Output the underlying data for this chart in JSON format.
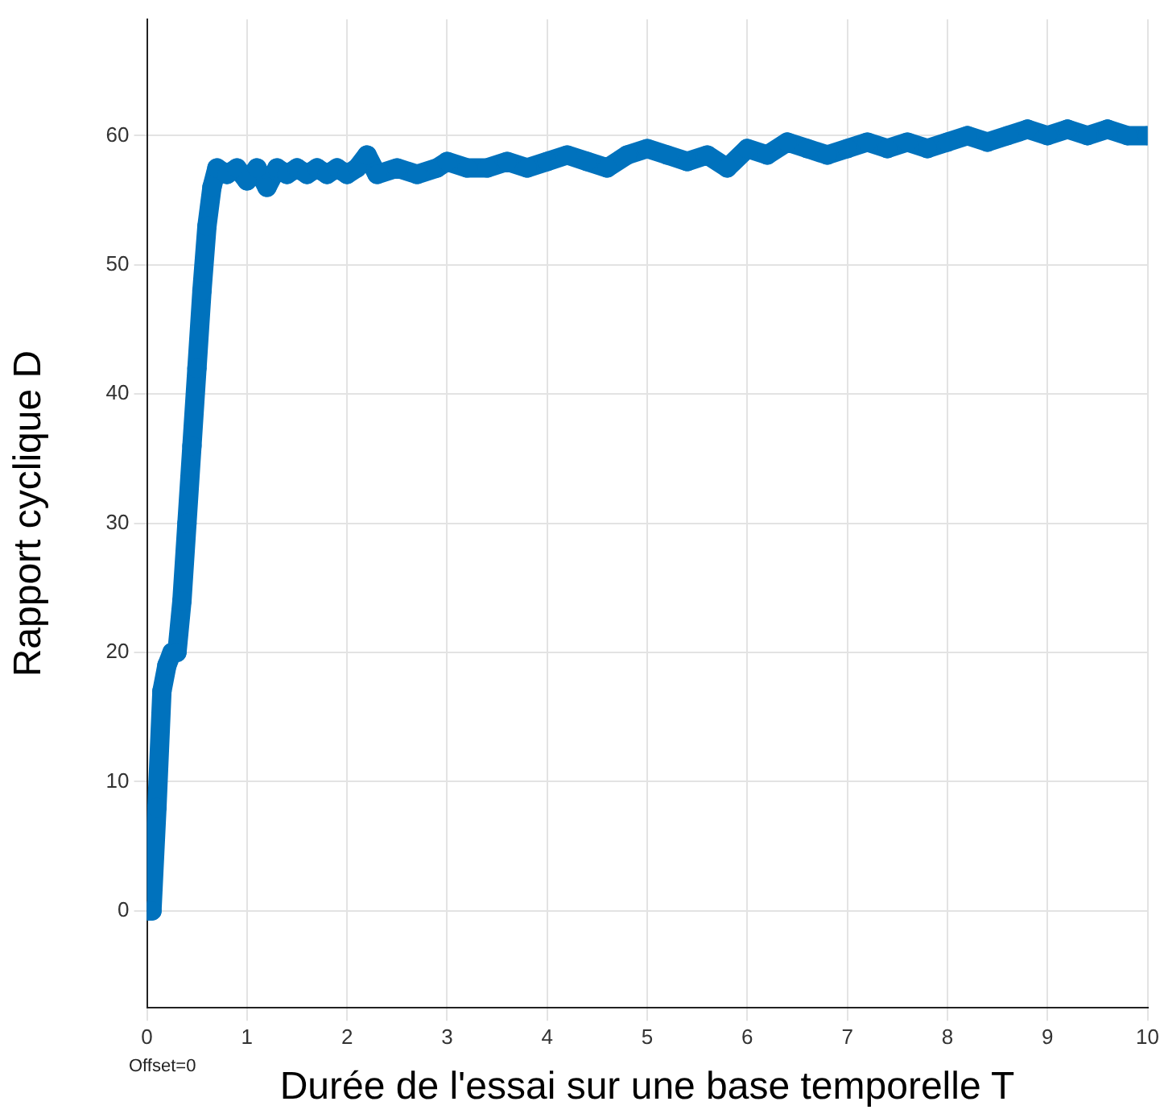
{
  "chart_data": {
    "type": "line",
    "xlabel": "Durée de l'essai sur une base temporelle T",
    "ylabel": "Rapport cyclique D",
    "annotations": [
      "Offset=0"
    ],
    "xlim": [
      0,
      10
    ],
    "xticks": [
      0,
      1,
      2,
      3,
      4,
      5,
      6,
      7,
      8,
      9,
      10
    ],
    "ylim": [
      -7.5,
      69
    ],
    "yticks": [
      0,
      10,
      20,
      30,
      40,
      50,
      60
    ],
    "grid": true,
    "marker": "circle",
    "line_style": "solid",
    "legend": false,
    "series": [
      {
        "color": "#0072bd",
        "x": [
          0,
          0.05,
          0.1,
          0.15,
          0.2,
          0.25,
          0.3,
          0.35,
          0.4,
          0.45,
          0.5,
          0.55,
          0.6,
          0.65,
          0.7,
          0.8,
          0.9,
          1.0,
          1.1,
          1.2,
          1.3,
          1.4,
          1.5,
          1.6,
          1.7,
          1.8,
          1.9,
          2.0,
          2.1,
          2.2,
          2.3,
          2.5,
          2.7,
          2.9,
          3.0,
          3.2,
          3.4,
          3.6,
          3.8,
          4.0,
          4.2,
          4.4,
          4.6,
          4.8,
          5.0,
          5.2,
          5.4,
          5.6,
          5.8,
          6.0,
          6.2,
          6.4,
          6.6,
          6.8,
          7.0,
          7.2,
          7.4,
          7.6,
          7.8,
          8.0,
          8.2,
          8.4,
          8.6,
          8.8,
          9.0,
          9.2,
          9.4,
          9.6,
          9.8,
          10.0
        ],
        "values": [
          0,
          0,
          8,
          17,
          19,
          20,
          20,
          24,
          30,
          36,
          42,
          48,
          53,
          56,
          57.5,
          57,
          57.5,
          56.5,
          57.5,
          56,
          57.5,
          57,
          57.5,
          57,
          57.5,
          57,
          57.5,
          57,
          57.5,
          58.5,
          57,
          57.5,
          57,
          57.5,
          58,
          57.5,
          57.5,
          58,
          57.5,
          58,
          58.5,
          58,
          57.5,
          58.5,
          59,
          58.5,
          58,
          58.5,
          57.5,
          59,
          58.5,
          59.5,
          59,
          58.5,
          59,
          59.5,
          59,
          59.5,
          59,
          59.5,
          60,
          59.5,
          60,
          60.5,
          60,
          60.5,
          60,
          60.5,
          60,
          60
        ]
      }
    ]
  }
}
